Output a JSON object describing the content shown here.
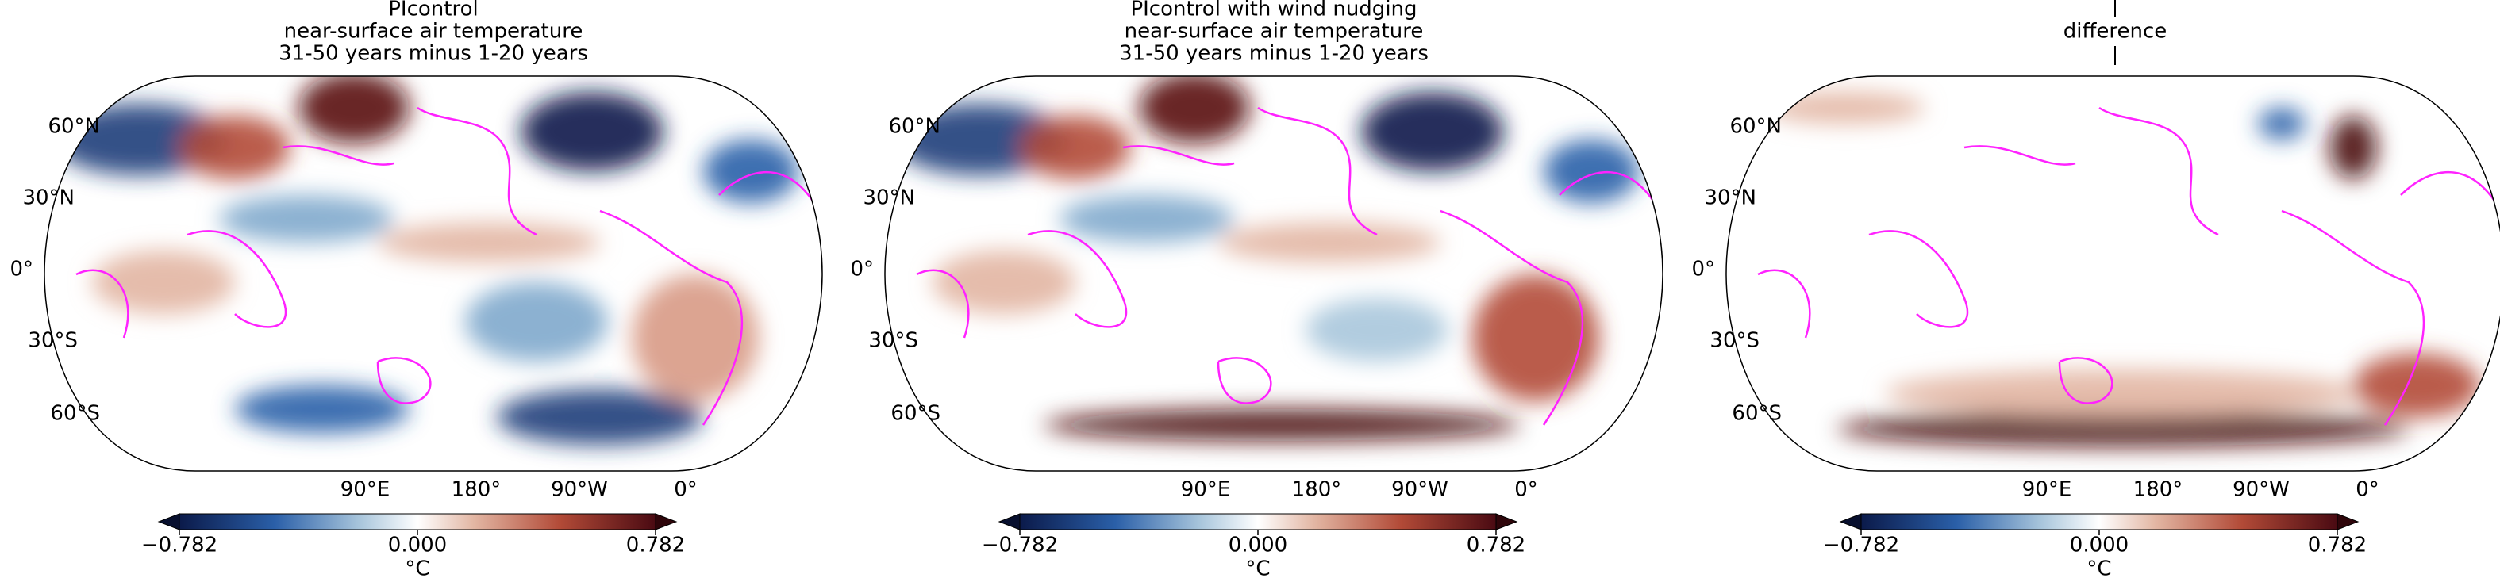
{
  "panels": [
    {
      "title": [
        "PIcontrol",
        "near-surface air temperature",
        "31-50 years minus 1-20 years"
      ],
      "lat_labels": [
        "60°N",
        "30°N",
        "0°",
        "30°S",
        "60°S"
      ],
      "lon_labels": [
        "90°E",
        "180°",
        "90°W",
        "0°"
      ],
      "colorbar": {
        "ticks": [
          {
            "value": -0.782,
            "label": "−0.782"
          },
          {
            "value": 0,
            "label": "0.000"
          },
          {
            "value": 0.782,
            "label": "0.782"
          }
        ],
        "label": "°C"
      }
    },
    {
      "title": [
        "PIcontrol with wind nudging",
        "near-surface air temperature",
        "31-50 years minus 1-20 years"
      ],
      "lat_labels": [
        "60°N",
        "30°N",
        "0°",
        "30°S",
        "60°S"
      ],
      "lon_labels": [
        "90°E",
        "180°",
        "90°W",
        "0°"
      ],
      "colorbar": {
        "ticks": [
          {
            "value": -0.782,
            "label": "−0.782"
          },
          {
            "value": 0,
            "label": "0.000"
          },
          {
            "value": 0.782,
            "label": "0.782"
          }
        ],
        "label": "°C"
      }
    },
    {
      "title": [
        "difference"
      ],
      "lat_labels": [
        "60°N",
        "30°N",
        "0°",
        "30°S",
        "60°S"
      ],
      "lon_labels": [
        "90°E",
        "180°",
        "90°W",
        "0°"
      ],
      "colorbar": {
        "ticks": [
          {
            "value": -0.782,
            "label": "−0.782"
          },
          {
            "value": 0,
            "label": "0.000"
          },
          {
            "value": 0.782,
            "label": "0.782"
          }
        ],
        "label": "°C"
      }
    }
  ]
}
